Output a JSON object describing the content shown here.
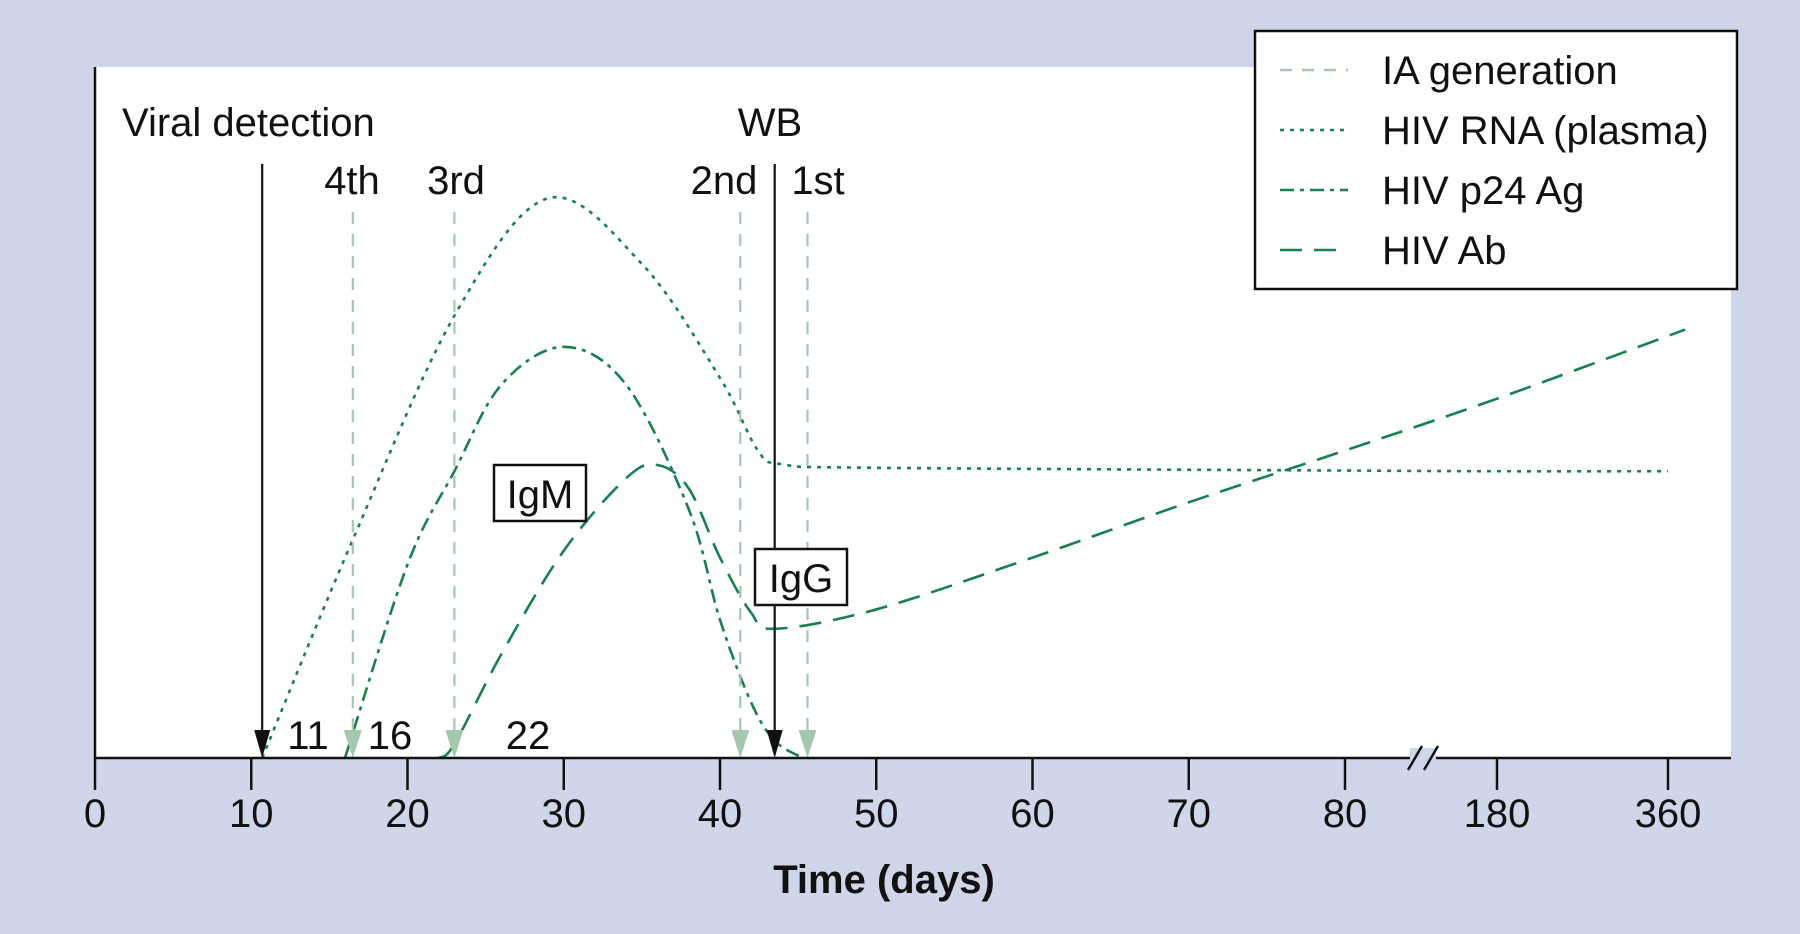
{
  "chart_data": {
    "type": "line",
    "title": "",
    "xlabel": "Time (days)",
    "ylabel": "",
    "x_ticks": [
      "0",
      "10",
      "20",
      "30",
      "40",
      "50",
      "60",
      "70",
      "80",
      "180",
      "360"
    ],
    "x_tick_values": [
      0,
      10,
      20,
      30,
      40,
      50,
      60,
      70,
      80,
      180,
      360
    ],
    "axis_break_between": [
      80,
      180
    ],
    "ylim": [
      0,
      100
    ],
    "grid": false,
    "legend_position": "top-right",
    "legend": [
      {
        "label": "IA generation",
        "style": "dashed",
        "color": "#a5c7ae"
      },
      {
        "label": "HIV RNA (plasma)",
        "style": "dotted",
        "color": "#17804f"
      },
      {
        "label": "HIV p24 Ag",
        "style": "dashdot",
        "color": "#17804f"
      },
      {
        "label": "HIV Ab",
        "style": "longdash",
        "color": "#17804f"
      }
    ],
    "series": [
      {
        "name": "HIV RNA (plasma)",
        "points": [
          [
            10.7,
            0
          ],
          [
            16.5,
            31.6
          ],
          [
            23,
            64
          ],
          [
            29,
            81
          ],
          [
            35,
            71.5
          ],
          [
            40,
            55
          ],
          [
            42.4,
            44.6
          ],
          [
            44,
            42.5
          ],
          [
            50,
            42
          ],
          [
            80,
            41.6
          ],
          [
            180,
            41.5
          ],
          [
            360,
            41.5
          ]
        ]
      },
      {
        "name": "HIV p24 Ag",
        "points": [
          [
            16,
            0
          ],
          [
            20,
            28
          ],
          [
            23,
            41.5
          ],
          [
            26,
            54
          ],
          [
            30,
            59.5
          ],
          [
            34,
            54
          ],
          [
            38,
            36
          ],
          [
            40,
            20
          ],
          [
            42,
            8
          ],
          [
            43.5,
            2.5
          ],
          [
            45.3,
            0
          ]
        ]
      },
      {
        "name": "HIV Ab",
        "points": [
          [
            22,
            0
          ],
          [
            23,
            2
          ],
          [
            26,
            15
          ],
          [
            30,
            30
          ],
          [
            34,
            40.5
          ],
          [
            36,
            42.4
          ],
          [
            38,
            39
          ],
          [
            40,
            29
          ],
          [
            42,
            21
          ],
          [
            43.5,
            18.7
          ],
          [
            50,
            21.5
          ],
          [
            60,
            29
          ],
          [
            70,
            37
          ],
          [
            80,
            44.5
          ],
          [
            180,
            52
          ],
          [
            378,
            62
          ]
        ]
      }
    ],
    "markers": [
      {
        "label": "Viral detection",
        "day": 10.7,
        "type": "arrow",
        "color": "#111111"
      },
      {
        "label": "WB",
        "day": 43.5,
        "type": "arrow",
        "color": "#111111"
      },
      {
        "label": "4th",
        "day": 16.5,
        "type": "IA generation"
      },
      {
        "label": "3rd",
        "day": 23,
        "type": "IA generation"
      },
      {
        "label": "2nd",
        "day": 41.3,
        "type": "IA generation"
      },
      {
        "label": "1st",
        "day": 45.6,
        "type": "IA generation"
      }
    ],
    "day_labels": [
      "11",
      "16",
      "22"
    ],
    "annotations": [
      "IgM",
      "IgG"
    ]
  }
}
